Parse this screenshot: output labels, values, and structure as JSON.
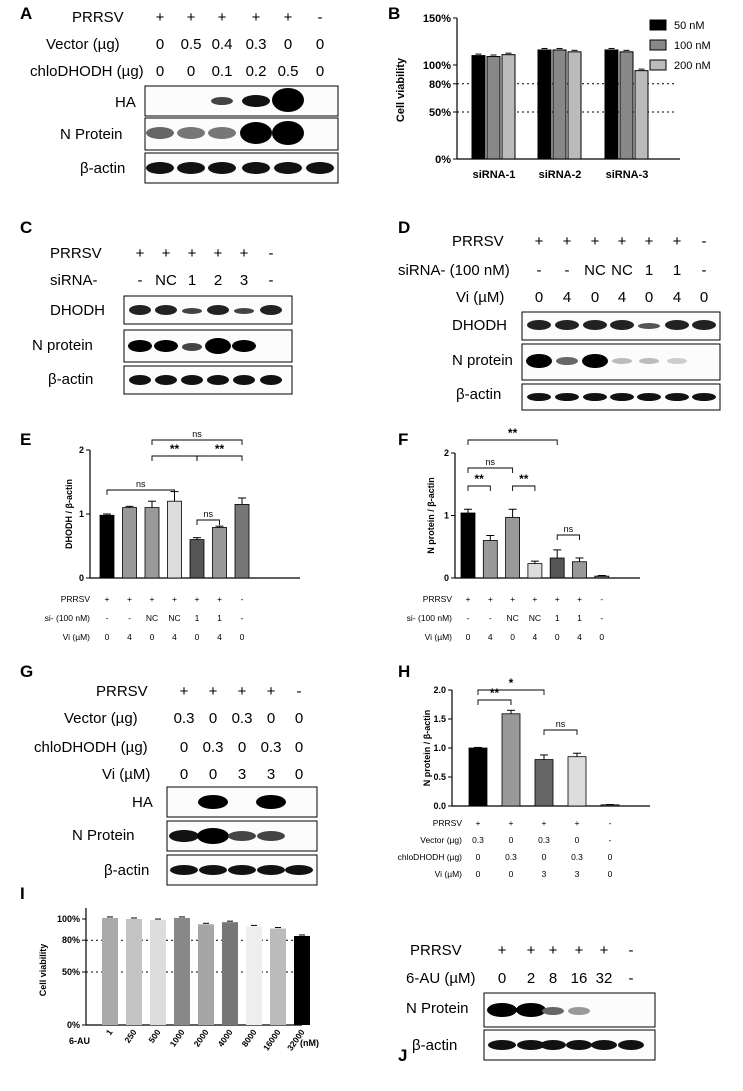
{
  "panels": {
    "A": {
      "letter": "A",
      "row_labels": [
        "PRRSV",
        "Vector (µg)",
        "chloDHODH (µg)"
      ],
      "rows": [
        [
          "+",
          "+",
          "+",
          "+",
          "+",
          "-"
        ],
        [
          "0",
          "0.5",
          "0.4",
          "0.3",
          "0",
          "0"
        ],
        [
          "0",
          "0",
          "0.1",
          "0.2",
          "0.5",
          "0"
        ]
      ],
      "blot_labels": [
        "HA",
        "N Protein",
        "β-actin"
      ]
    },
    "C": {
      "letter": "C",
      "row_labels": [
        "PRRSV",
        "siRNA-"
      ],
      "rows": [
        [
          "+",
          "+",
          "+",
          "+",
          "+",
          "-"
        ],
        [
          "-",
          "NC",
          "1",
          "2",
          "3",
          "-"
        ]
      ],
      "blot_labels": [
        "DHODH",
        "N protein",
        "β-actin"
      ]
    },
    "D": {
      "letter": "D",
      "row_labels": [
        "PRRSV",
        "siRNA- (100 nM)",
        "Vi (µM)"
      ],
      "rows": [
        [
          "+",
          "+",
          "+",
          "+",
          "+",
          "+",
          "-"
        ],
        [
          "-",
          "-",
          "NC",
          "NC",
          "1",
          "1",
          "-"
        ],
        [
          "0",
          "4",
          "0",
          "4",
          "0",
          "4",
          "0"
        ]
      ],
      "blot_labels": [
        "DHODH",
        "N protein",
        "β-actin"
      ]
    },
    "G": {
      "letter": "G",
      "row_labels": [
        "PRRSV",
        "Vector (µg)",
        "chloDHODH (µg)",
        "Vi (µM)"
      ],
      "rows": [
        [
          "+",
          "+",
          "+",
          "+",
          "-"
        ],
        [
          "0.3",
          "0",
          "0.3",
          "0",
          "0"
        ],
        [
          "0",
          "0.3",
          "0",
          "0.3",
          "0"
        ],
        [
          "0",
          "0",
          "3",
          "3",
          "0"
        ]
      ],
      "blot_labels": [
        "HA",
        "N Protein",
        "β-actin"
      ]
    },
    "J": {
      "letter": "J",
      "row_labels": [
        "PRRSV",
        "6-AU (µM)"
      ],
      "rows": [
        [
          "+",
          "+",
          "+",
          "+",
          "+",
          "-"
        ],
        [
          "0",
          "2",
          "8",
          "16",
          "32",
          "-"
        ]
      ],
      "blot_labels": [
        "N Protein",
        "β-actin"
      ]
    }
  },
  "chart_data": [
    {
      "id": "B",
      "type": "bar",
      "ylabel": "Cell viability",
      "yticks": [
        "0%",
        "50%",
        "80%",
        "100%",
        "150%"
      ],
      "categories": [
        "siRNA-1",
        "siRNA-2",
        "siRNA-3"
      ],
      "series": [
        {
          "name": "50 nM",
          "color": "#000000",
          "values": [
            110,
            116,
            116
          ]
        },
        {
          "name": "100 nM",
          "color": "#888888",
          "values": [
            109,
            116,
            114
          ]
        },
        {
          "name": "200 nM",
          "color": "#bbbbbb",
          "values": [
            111,
            114,
            94
          ]
        }
      ],
      "ylim": [
        0,
        150
      ],
      "reference_lines": [
        80,
        50
      ],
      "legend": "top-right"
    },
    {
      "id": "E",
      "type": "bar",
      "ylabel": "DHODH / β-actin",
      "yticks": [
        "0",
        "1",
        "2"
      ],
      "ylim": [
        0,
        2
      ],
      "values": [
        0.98,
        1.1,
        1.1,
        1.2,
        0.6,
        0.79,
        1.15
      ],
      "errors": [
        0.02,
        0.02,
        0.1,
        0.15,
        0.03,
        0.02,
        0.1
      ],
      "colors": [
        "#000000",
        "#999999",
        "#999999",
        "#dddddd",
        "#555555",
        "#999999",
        "#777777"
      ],
      "significance": [
        {
          "from": 0,
          "to": 3,
          "text": "ns"
        },
        {
          "from": 2,
          "to": 6,
          "text": "ns"
        },
        {
          "from": 2,
          "to": 4,
          "text": "**"
        },
        {
          "from": 4,
          "to": 6,
          "text": "**"
        },
        {
          "from": 4,
          "to": 5,
          "text": "ns"
        }
      ],
      "table_labels": [
        "PRRSV",
        "si- (100 nM)",
        "Vi (µM)"
      ],
      "table": [
        [
          "+",
          "+",
          "+",
          "+",
          "+",
          "+",
          "-"
        ],
        [
          "-",
          "-",
          "NC",
          "NC",
          "1",
          "1",
          "-"
        ],
        [
          "0",
          "4",
          "0",
          "4",
          "0",
          "4",
          "0"
        ]
      ]
    },
    {
      "id": "F",
      "type": "bar",
      "ylabel": "N protein / β-actin",
      "yticks": [
        "0",
        "1",
        "2"
      ],
      "ylim": [
        0,
        2
      ],
      "values": [
        1.04,
        0.6,
        0.97,
        0.23,
        0.32,
        0.26,
        0.03
      ],
      "errors": [
        0.06,
        0.08,
        0.13,
        0.04,
        0.13,
        0.06,
        0.01
      ],
      "colors": [
        "#000000",
        "#999999",
        "#999999",
        "#dddddd",
        "#555555",
        "#999999",
        "#777777"
      ],
      "significance": [
        {
          "from": 0,
          "to": 4,
          "text": "**"
        },
        {
          "from": 0,
          "to": 2,
          "text": "ns"
        },
        {
          "from": 0,
          "to": 1,
          "text": "**"
        },
        {
          "from": 2,
          "to": 3,
          "text": "**"
        },
        {
          "from": 4,
          "to": 5,
          "text": "ns"
        }
      ],
      "table_labels": [
        "PRRSV",
        "si- (100 nM)",
        "Vi (µM)"
      ],
      "table": [
        [
          "+",
          "+",
          "+",
          "+",
          "+",
          "+",
          "-"
        ],
        [
          "-",
          "-",
          "NC",
          "NC",
          "1",
          "1",
          "-"
        ],
        [
          "0",
          "4",
          "0",
          "4",
          "0",
          "4",
          "0"
        ]
      ]
    },
    {
      "id": "H",
      "type": "bar",
      "ylabel": "N protein / β-actin",
      "yticks": [
        "0.0",
        "0.5",
        "1.0",
        "1.5",
        "2.0"
      ],
      "ylim": [
        0,
        2
      ],
      "values": [
        1.0,
        1.59,
        0.8,
        0.85,
        0.02
      ],
      "errors": [
        0.01,
        0.06,
        0.08,
        0.06,
        0.005
      ],
      "colors": [
        "#000000",
        "#999999",
        "#666666",
        "#dddddd",
        "#777777"
      ],
      "significance": [
        {
          "from": 0,
          "to": 2,
          "text": "*"
        },
        {
          "from": 0,
          "to": 1,
          "text": "**"
        },
        {
          "from": 2,
          "to": 3,
          "text": "ns"
        }
      ],
      "table_labels": [
        "PRRSV",
        "Vector (µg)",
        "chloDHODH (µg)",
        "Vi (µM)"
      ],
      "table": [
        [
          "+",
          "+",
          "+",
          "+",
          "-"
        ],
        [
          "0.3",
          "0",
          "0.3",
          "0",
          "-"
        ],
        [
          "0",
          "0.3",
          "0",
          "0.3",
          "0"
        ],
        [
          "0",
          "0",
          "3",
          "3",
          "0"
        ]
      ]
    },
    {
      "id": "I",
      "type": "bar",
      "ylabel": "Cell viability",
      "yticks": [
        "0%",
        "50%",
        "80%",
        "100%"
      ],
      "ylim": [
        0,
        100
      ],
      "xlabel": "6-AU",
      "xunit": "(nM)",
      "categories": [
        "1",
        "250",
        "500",
        "1000",
        "2000",
        "4000",
        "8000",
        "16000",
        "32000"
      ],
      "values": [
        101,
        100,
        99,
        101,
        95,
        97,
        93,
        91,
        84
      ],
      "colors": [
        "#aaaaaa",
        "#c4c4c4",
        "#dddddd",
        "#888888",
        "#a6a6a6",
        "#777777",
        "#eeeeee",
        "#bbbbbb",
        "#000000"
      ],
      "reference_lines": [
        80,
        50
      ]
    }
  ]
}
